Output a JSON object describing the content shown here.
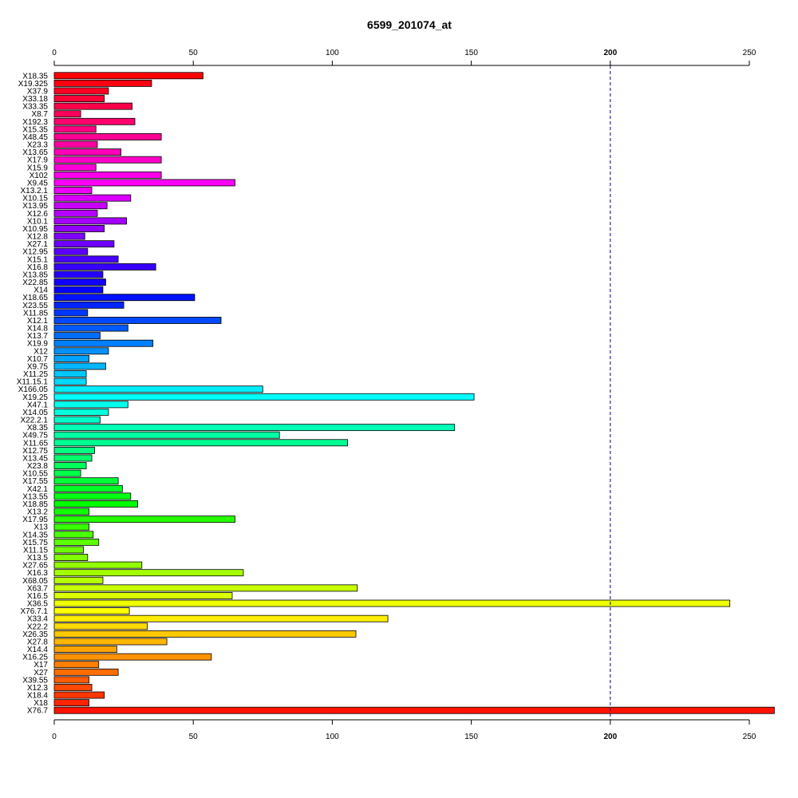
{
  "chart_data": {
    "type": "bar",
    "orientation": "horizontal",
    "title": "6599_201074_at",
    "xlabel": "",
    "ylabel": "",
    "xlim": [
      0,
      260
    ],
    "x_ticks": [
      0,
      50,
      100,
      150,
      200,
      250
    ],
    "reference_line": {
      "value": 200,
      "style": "dashed",
      "color": "#00008b"
    },
    "bar_colors": "rainbow palette from red through magenta, blue, cyan, green, yellow, orange to red",
    "categories": [
      "X18.35",
      "X19.325",
      "X37.9",
      "X33.18",
      "X33.35",
      "X8.7",
      "X192.3",
      "X15.35",
      "X48.45",
      "X23.3",
      "X13.65",
      "X17.9",
      "X15.9",
      "X102",
      "X9.45",
      "X13.2.1",
      "X10.15",
      "X13.95",
      "X12.6",
      "X10.1",
      "X10.95",
      "X12.8",
      "X27.1",
      "X12.95",
      "X15.1",
      "X16.8",
      "X13.85",
      "X22.85",
      "X14",
      "X18.65",
      "X23.55",
      "X11.85",
      "X12.1",
      "X14.8",
      "X13.7",
      "X19.9",
      "X12",
      "X10.7",
      "X9.75",
      "X11.25",
      "X11.15.1",
      "X166.05",
      "X19.25",
      "X47.1",
      "X14.05",
      "X22.2.1",
      "X8.35",
      "X49.75",
      "X11.65",
      "X12.75",
      "X13.45",
      "X23.8",
      "X10.55",
      "X17.55",
      "X42.1",
      "X13.55",
      "X18.85",
      "X13.2",
      "X17.95",
      "X13",
      "X14.35",
      "X15.75",
      "X11.15",
      "X13.5",
      "X27.65",
      "X16.3",
      "X68.05",
      "X63.7",
      "X16.5",
      "X36.5",
      "X76.7.1",
      "X33.4",
      "X22.2",
      "X26.35",
      "X27.8",
      "X14.4",
      "X16.25",
      "X17",
      "X27",
      "X39.55",
      "X12.3",
      "X18.4",
      "X18",
      "X76.7"
    ],
    "values": [
      53.5,
      35,
      19.5,
      18,
      28,
      9.5,
      29,
      15,
      38.5,
      15.5,
      24,
      38.5,
      15,
      38.5,
      65,
      13.5,
      27.5,
      19,
      15.5,
      26,
      18,
      11,
      21.5,
      12,
      23,
      36.5,
      17.5,
      18.5,
      17.5,
      50.5,
      25,
      12,
      60,
      26.5,
      16.5,
      35.5,
      19.5,
      12.5,
      18.5,
      11.5,
      11.5,
      75,
      151,
      26.5,
      19.5,
      16.5,
      144,
      81,
      105.5,
      14.5,
      13.5,
      11.5,
      9.5,
      23,
      24.5,
      27.5,
      30,
      12.5,
      65,
      12.5,
      14,
      16,
      10.5,
      12,
      31.5,
      68,
      17.5,
      109,
      64,
      243,
      27,
      120,
      33.5,
      108.5,
      40.5,
      22.5,
      56.5,
      16,
      23,
      12.5,
      13.5,
      18,
      12.5,
      259
    ]
  }
}
